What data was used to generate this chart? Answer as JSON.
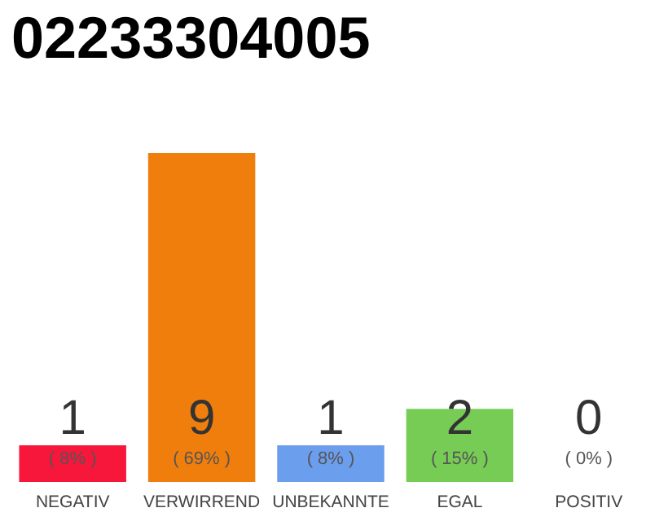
{
  "chart_data": {
    "type": "bar",
    "title": "02233304005",
    "categories": [
      "NEGATIV",
      "VERWIRREND",
      "UNBEKANNTE",
      "EGAL",
      "POSITIV"
    ],
    "values": [
      1,
      9,
      1,
      2,
      0
    ],
    "colors": [
      "#f7173b",
      "#f07e0d",
      "#6c9eee",
      "#77cc55",
      "#d0d0d0"
    ],
    "value_labels": [
      "1\n( 8% )",
      "9\n( 69% )",
      "1\n( 8% )",
      "2\n( 15% )",
      "0\n( 0% )"
    ]
  }
}
